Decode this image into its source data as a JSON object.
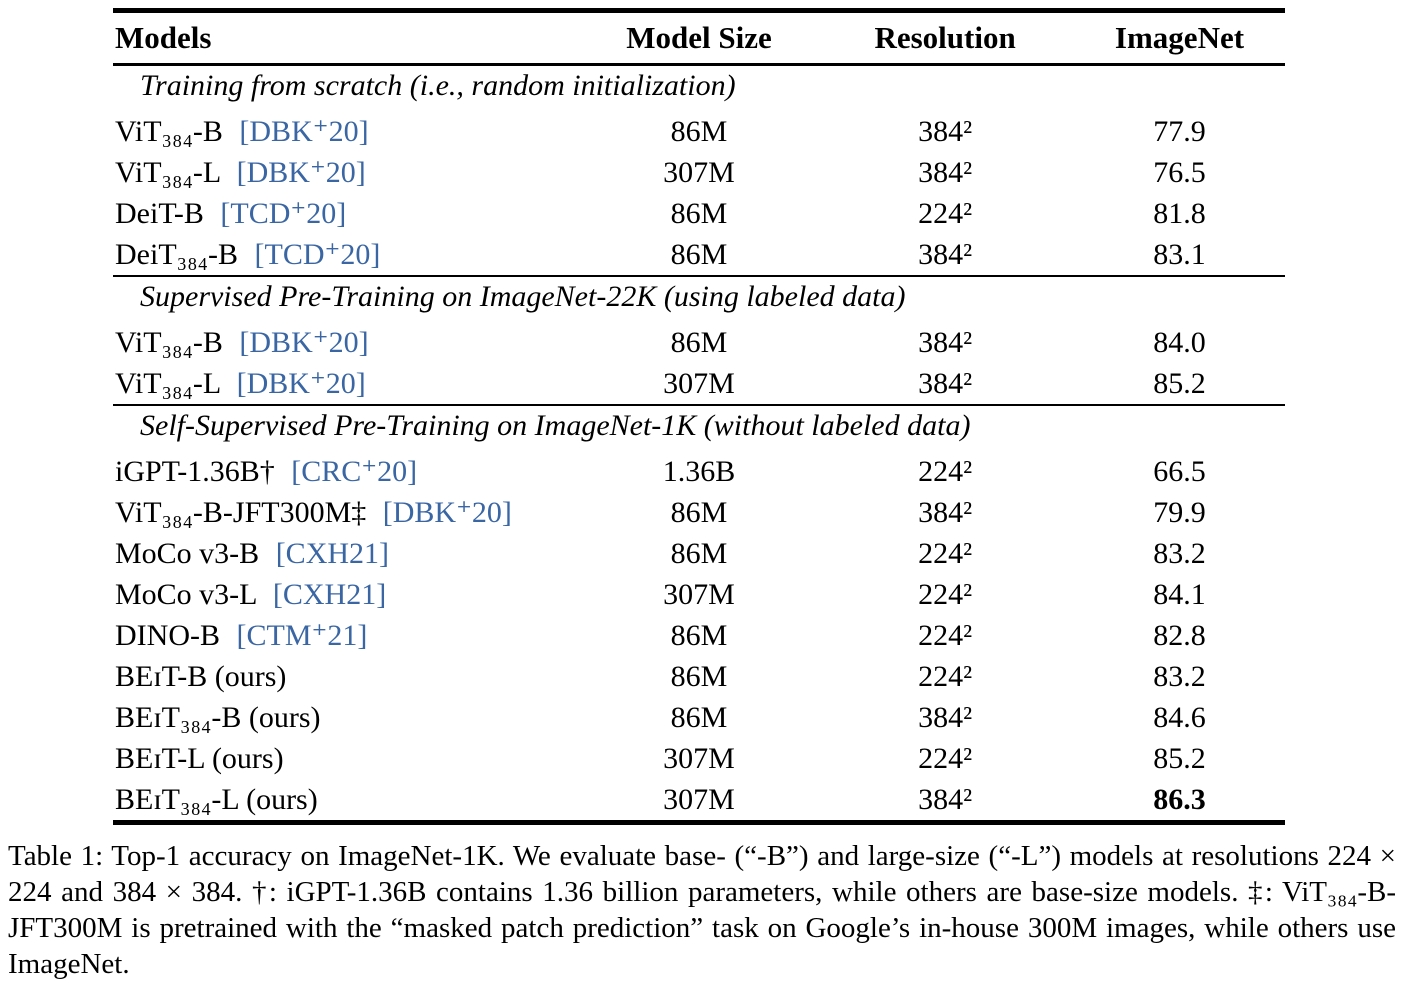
{
  "table": {
    "columns": [
      "Models",
      "Model Size",
      "Resolution",
      "ImageNet"
    ],
    "sections": [
      {
        "heading": "Training from scratch (i.e., random initialization)",
        "rows": [
          {
            "model": "ViT₃₈₄-B",
            "cite": "[DBK⁺20]",
            "size": "86M",
            "resolution": "384²",
            "imagenet": "77.9",
            "bold": false
          },
          {
            "model": "ViT₃₈₄-L",
            "cite": "[DBK⁺20]",
            "size": "307M",
            "resolution": "384²",
            "imagenet": "76.5",
            "bold": false
          },
          {
            "model": "DeiT-B",
            "cite": "[TCD⁺20]",
            "size": "86M",
            "resolution": "224²",
            "imagenet": "81.8",
            "bold": false
          },
          {
            "model": "DeiT₃₈₄-B",
            "cite": "[TCD⁺20]",
            "size": "86M",
            "resolution": "384²",
            "imagenet": "83.1",
            "bold": false
          }
        ]
      },
      {
        "heading": "Supervised Pre-Training on ImageNet-22K (using labeled data)",
        "rows": [
          {
            "model": "ViT₃₈₄-B",
            "cite": "[DBK⁺20]",
            "size": "86M",
            "resolution": "384²",
            "imagenet": "84.0",
            "bold": false
          },
          {
            "model": "ViT₃₈₄-L",
            "cite": "[DBK⁺20]",
            "size": "307M",
            "resolution": "384²",
            "imagenet": "85.2",
            "bold": false
          }
        ]
      },
      {
        "heading": "Self-Supervised Pre-Training on ImageNet-1K (without labeled data)",
        "rows": [
          {
            "model": "iGPT-1.36B†",
            "cite": "[CRC⁺20]",
            "size": "1.36B",
            "resolution": "224²",
            "imagenet": "66.5",
            "bold": false
          },
          {
            "model": "ViT₃₈₄-B-JFT300M‡",
            "cite": "[DBK⁺20]",
            "size": "86M",
            "resolution": "384²",
            "imagenet": "79.9",
            "bold": false
          },
          {
            "model": "MoCo v3-B",
            "cite": "[CXH21]",
            "size": "86M",
            "resolution": "224²",
            "imagenet": "83.2",
            "bold": false
          },
          {
            "model": "MoCo v3-L",
            "cite": "[CXH21]",
            "size": "307M",
            "resolution": "224²",
            "imagenet": "84.1",
            "bold": false
          },
          {
            "model": "DINO-B",
            "cite": "[CTM⁺21]",
            "size": "86M",
            "resolution": "224²",
            "imagenet": "82.8",
            "bold": false
          },
          {
            "model": "BEɪT-B (ours)",
            "cite": "",
            "size": "86M",
            "resolution": "224²",
            "imagenet": "83.2",
            "bold": false
          },
          {
            "model": "BEɪT₃₈₄-B (ours)",
            "cite": "",
            "size": "86M",
            "resolution": "384²",
            "imagenet": "84.6",
            "bold": false
          },
          {
            "model": "BEɪT-L (ours)",
            "cite": "",
            "size": "307M",
            "resolution": "224²",
            "imagenet": "85.2",
            "bold": false
          },
          {
            "model": "BEɪT₃₈₄-L (ours)",
            "cite": "",
            "size": "307M",
            "resolution": "384²",
            "imagenet": "86.3",
            "bold": true
          }
        ]
      }
    ]
  },
  "caption": "Table 1: Top-1 accuracy on ImageNet-1K. We evaluate base- (“-B”) and large-size (“-L”) models at resolutions 224 × 224 and 384 × 384. †: iGPT-1.36B contains 1.36 billion parameters, while others are base-size models. ‡: ViT₃₈₄-B-JFT300M is pretrained with the “masked patch prediction” task on Google’s in-house 300M images, while others use ImageNet.",
  "colors": {
    "citation_link": "#3A66A4",
    "text": "#000000",
    "background": "#ffffff"
  }
}
